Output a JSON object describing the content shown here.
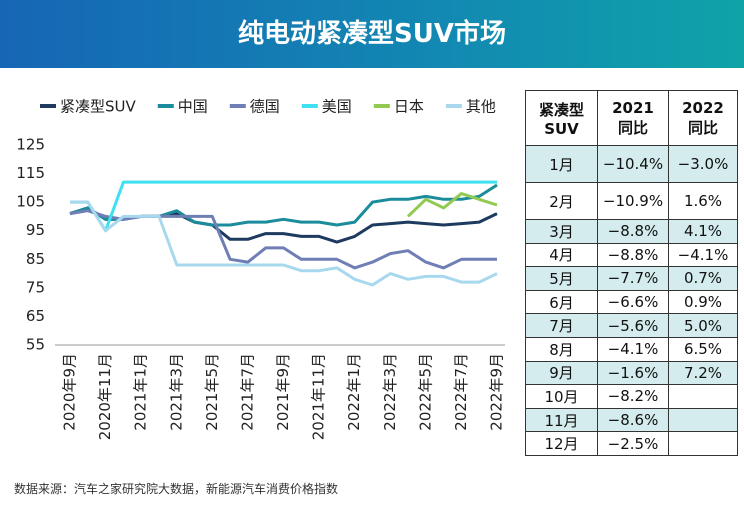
{
  "header": {
    "title": "纯电动紧凑型SUV市场"
  },
  "chart_data": {
    "type": "line",
    "categories": [
      "2020年9月",
      null,
      "2020年11月",
      null,
      "2021年1月",
      null,
      "2021年3月",
      null,
      "2021年5月",
      null,
      "2021年7月",
      null,
      "2021年9月",
      null,
      "2021年11月",
      null,
      "2022年1月",
      null,
      "2022年3月",
      null,
      "2022年5月",
      null,
      "2022年7月",
      null,
      "2022年9月"
    ],
    "ylim": [
      55,
      125
    ],
    "yticks": [
      55,
      65,
      75,
      85,
      95,
      105,
      115,
      125
    ],
    "series": [
      {
        "name": "紧凑型SUV",
        "color": "#1f3a5f",
        "values": [
          101,
          103,
          99,
          99,
          100,
          100,
          101,
          98,
          97,
          92,
          92,
          94,
          94,
          93,
          93,
          91,
          93,
          97,
          97.5,
          98,
          97.5,
          97,
          97.5,
          98,
          101
        ]
      },
      {
        "name": "中国",
        "color": "#1a8c9c",
        "values": [
          101,
          103,
          99,
          99,
          100,
          100,
          102,
          98,
          97,
          97,
          98,
          98,
          99,
          98,
          98,
          97,
          98,
          105,
          106,
          106,
          107,
          106,
          106,
          107,
          111
        ]
      },
      {
        "name": "德国",
        "color": "#6f7fb5",
        "values": [
          101,
          102,
          100,
          99,
          100,
          100,
          100,
          100,
          100,
          85,
          84,
          89,
          89,
          85,
          85,
          85,
          82,
          84,
          87,
          88,
          84,
          82,
          85,
          85,
          85
        ]
      },
      {
        "name": "美国",
        "color": "#3fe0ef",
        "values": [
          105,
          105,
          95,
          112,
          112,
          112,
          112,
          112,
          112,
          112,
          112,
          112,
          112,
          112,
          112,
          112,
          112,
          112,
          112,
          112,
          112,
          112,
          112,
          112,
          112
        ]
      },
      {
        "name": "日本",
        "color": "#92c950",
        "values": [
          null,
          null,
          null,
          null,
          null,
          null,
          null,
          null,
          null,
          null,
          null,
          null,
          null,
          null,
          null,
          null,
          null,
          null,
          null,
          100,
          106,
          103,
          108,
          106,
          104
        ]
      },
      {
        "name": "其他",
        "color": "#a8d8ee",
        "values": [
          105,
          105,
          95,
          100,
          100,
          100,
          83,
          83,
          83,
          83,
          83,
          83,
          83,
          81,
          81,
          82,
          78,
          76,
          80,
          78,
          79,
          79,
          77,
          77,
          80
        ]
      }
    ]
  },
  "table": {
    "header": [
      [
        "紧凑型",
        "SUV"
      ],
      [
        "2021",
        "同比"
      ],
      [
        "2022",
        "同比"
      ]
    ],
    "rows": [
      [
        "1月",
        "−10.4%",
        "−3.0%"
      ],
      [
        "2月",
        "−10.9%",
        "1.6%"
      ],
      [
        "3月",
        "−8.8%",
        "4.1%"
      ],
      [
        "4月",
        "−8.8%",
        "−4.1%"
      ],
      [
        "5月",
        "−7.7%",
        "0.7%"
      ],
      [
        "6月",
        "−6.6%",
        "0.9%"
      ],
      [
        "7月",
        "−5.6%",
        "5.0%"
      ],
      [
        "8月",
        "−4.1%",
        "6.5%"
      ],
      [
        "9月",
        "−1.6%",
        "7.2%"
      ],
      [
        "10月",
        "−8.2%",
        null
      ],
      [
        "11月",
        "−8.6%",
        null
      ],
      [
        "12月",
        "−2.5%",
        null
      ]
    ]
  },
  "source": "数据来源：汽车之家研究院大数据，新能源汽车消费价格指数"
}
